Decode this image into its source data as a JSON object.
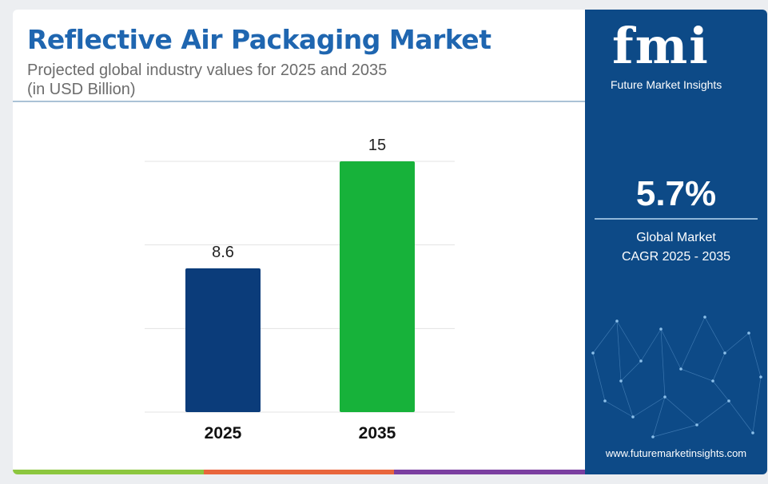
{
  "header": {
    "title": "Reflective Air Packaging Market",
    "subtitle_line1": "Projected global industry values for 2025 and 2035",
    "subtitle_line2": "(in USD Billion)"
  },
  "chart_data": {
    "type": "bar",
    "categories": [
      "2025",
      "2035"
    ],
    "values": [
      8.6,
      15
    ],
    "value_labels": [
      "8.6",
      "15"
    ],
    "colors": [
      "#0b3c7a",
      "#17b23a"
    ],
    "ylim": [
      0,
      15
    ],
    "grid": true,
    "xlabel": "",
    "ylabel": ""
  },
  "sidebar": {
    "logo_text": "fmi",
    "brand_name": "Future Market Insights",
    "cagr_value": "5.7%",
    "cagr_label_line1": "Global Market",
    "cagr_label_line2": "CAGR 2025 - 2035",
    "website": "www.futuremarketinsights.com"
  },
  "footer_colors": [
    "#8cc63f",
    "#e8663d",
    "#7b3fa0"
  ],
  "theme": {
    "brand_blue": "#1f66b0",
    "panel_blue": "#0d4a87"
  }
}
